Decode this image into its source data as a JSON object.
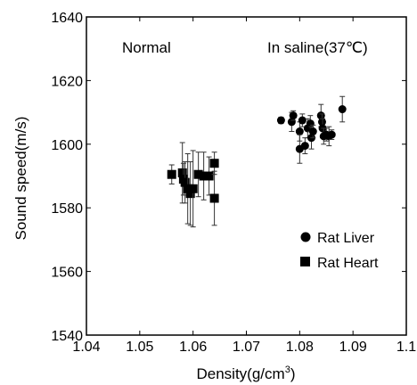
{
  "chart_data": {
    "type": "scatter",
    "title": "",
    "xlabel": "Density(g/cm",
    "xlabel_superscript": "3",
    "xlabel_suffix": ")",
    "ylabel": "Sound speed(m/s)",
    "xlim": [
      1.04,
      1.1
    ],
    "ylim": [
      1540,
      1640
    ],
    "x_ticks": [
      1.04,
      1.05,
      1.06,
      1.07,
      1.08,
      1.09,
      1.1
    ],
    "x_tick_labels": [
      "1.04",
      "1.05",
      "1.06",
      "1.07",
      "1.08",
      "1.09",
      "1.1"
    ],
    "y_ticks": [
      1540,
      1560,
      1580,
      1600,
      1620,
      1640
    ],
    "y_tick_labels": [
      "1540",
      "1560",
      "1580",
      "1600",
      "1620",
      "1640"
    ],
    "grid": false,
    "legend_position": "bottom-right",
    "annotations": {
      "left": "Normal",
      "right": "In saline(37℃)"
    },
    "series": [
      {
        "name": "Rat Liver",
        "marker": "circle",
        "color": "#000000",
        "points": [
          {
            "x": 1.0765,
            "y": 1607.5,
            "err": 1.0
          },
          {
            "x": 1.0785,
            "y": 1607.0,
            "err": 3.0
          },
          {
            "x": 1.0788,
            "y": 1609.0,
            "err": 1.5
          },
          {
            "x": 1.08,
            "y": 1604.0,
            "err": 3.0
          },
          {
            "x": 1.08,
            "y": 1598.5,
            "err": 4.5
          },
          {
            "x": 1.0805,
            "y": 1607.5,
            "err": 2.0
          },
          {
            "x": 1.081,
            "y": 1599.5,
            "err": 2.5
          },
          {
            "x": 1.0815,
            "y": 1605.0,
            "err": 3.0
          },
          {
            "x": 1.082,
            "y": 1606.5,
            "err": 2.5
          },
          {
            "x": 1.0822,
            "y": 1602.0,
            "err": 3.5
          },
          {
            "x": 1.0825,
            "y": 1604.0,
            "err": 2.0
          },
          {
            "x": 1.084,
            "y": 1609.0,
            "err": 3.5
          },
          {
            "x": 1.0842,
            "y": 1607.0,
            "err": 2.5
          },
          {
            "x": 1.0843,
            "y": 1605.0,
            "err": 3.0
          },
          {
            "x": 1.0845,
            "y": 1602.5,
            "err": 2.5
          },
          {
            "x": 1.085,
            "y": 1603.0,
            "err": 2.0
          },
          {
            "x": 1.0855,
            "y": 1602.5,
            "err": 3.0
          },
          {
            "x": 1.086,
            "y": 1603.0,
            "err": 1.5
          },
          {
            "x": 1.088,
            "y": 1611.0,
            "err": 4.0
          }
        ]
      },
      {
        "name": "Rat Heart",
        "marker": "square",
        "color": "#000000",
        "points": [
          {
            "x": 1.056,
            "y": 1590.5,
            "err": 3.0
          },
          {
            "x": 1.058,
            "y": 1591.0,
            "err": 9.5
          },
          {
            "x": 1.0582,
            "y": 1589.0,
            "err": 5.0
          },
          {
            "x": 1.0585,
            "y": 1588.0,
            "err": 6.5
          },
          {
            "x": 1.059,
            "y": 1586.0,
            "err": 11.0
          },
          {
            "x": 1.0595,
            "y": 1584.5,
            "err": 10.0
          },
          {
            "x": 1.06,
            "y": 1586.0,
            "err": 12.0
          },
          {
            "x": 1.061,
            "y": 1590.5,
            "err": 7.0
          },
          {
            "x": 1.062,
            "y": 1590.0,
            "err": 7.5
          },
          {
            "x": 1.063,
            "y": 1590.0,
            "err": 6.0
          },
          {
            "x": 1.064,
            "y": 1594.0,
            "err": 3.5
          },
          {
            "x": 1.064,
            "y": 1583.0,
            "err": 8.5
          }
        ]
      }
    ]
  }
}
